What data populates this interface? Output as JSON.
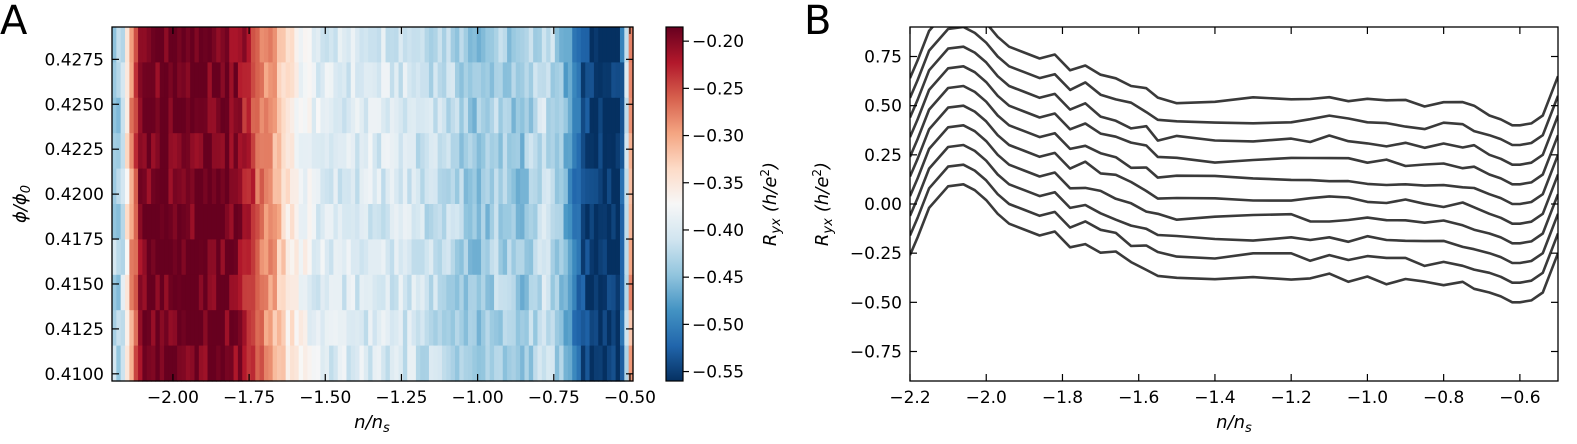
{
  "chart_data": [
    {
      "panel": "A",
      "type": "heatmap",
      "title": "",
      "xlabel_italic": "n/n",
      "xlabel_sub": "s",
      "ylabel_italic": "ϕ/ϕ",
      "ylabel_sub": "0",
      "xlim": [
        -2.2,
        -0.49
      ],
      "ylim": [
        0.4096,
        0.4293
      ],
      "xticks": [
        -2.0,
        -1.75,
        -1.5,
        -1.25,
        -1.0,
        -0.75,
        -0.5
      ],
      "xtick_labels": [
        "−2.00",
        "−1.75",
        "−1.50",
        "−1.25",
        "−1.00",
        "−0.75",
        "−0.50"
      ],
      "yticks": [
        0.41,
        0.4125,
        0.415,
        0.4175,
        0.42,
        0.4225,
        0.425,
        0.4275
      ],
      "ytick_labels": [
        "0.4100",
        "0.4125",
        "0.4150",
        "0.4175",
        "0.4200",
        "0.4225",
        "0.4250",
        "0.4275"
      ],
      "n_rows": 10,
      "profile_x": [
        -2.2,
        -2.18,
        -2.16,
        -2.14,
        -2.1,
        -2.0,
        -1.9,
        -1.82,
        -1.78,
        -1.74,
        -1.7,
        -1.66,
        -1.62,
        -1.58,
        -1.54,
        -1.5,
        -1.4,
        -1.3,
        -1.2,
        -1.1,
        -1.02,
        -0.98,
        -0.94,
        -0.9,
        -0.86,
        -0.82,
        -0.78,
        -0.74,
        -0.7,
        -0.66,
        -0.62,
        -0.58,
        -0.54,
        -0.52,
        -0.5
      ],
      "profile_values": [
        -0.42,
        -0.44,
        -0.4,
        -0.3,
        -0.19,
        -0.19,
        -0.19,
        -0.19,
        -0.21,
        -0.24,
        -0.28,
        -0.31,
        -0.35,
        -0.37,
        -0.39,
        -0.4,
        -0.4,
        -0.4,
        -0.41,
        -0.42,
        -0.44,
        -0.45,
        -0.43,
        -0.44,
        -0.45,
        -0.43,
        -0.41,
        -0.43,
        -0.48,
        -0.53,
        -0.56,
        -0.56,
        -0.56,
        -0.5,
        -0.3
      ],
      "colorbar": {
        "label_italic": "R",
        "label_sub": "yx",
        "label_units": "(h/e",
        "label_sup": "2",
        "label_close": ")",
        "vmin": -0.56,
        "vmax": -0.185,
        "ticks": [
          -0.2,
          -0.25,
          -0.3,
          -0.35,
          -0.4,
          -0.45,
          -0.5,
          -0.55
        ],
        "tick_labels": [
          "−0.20",
          "−0.25",
          "−0.30",
          "−0.35",
          "−0.40",
          "−0.45",
          "−0.50",
          "−0.55"
        ],
        "colormap": [
          "#053061",
          "#2166ac",
          "#4393c3",
          "#92c5de",
          "#d1e5f0",
          "#f7f7f7",
          "#fddbc7",
          "#f4a582",
          "#d6604d",
          "#b2182b",
          "#67001f"
        ]
      }
    },
    {
      "panel": "B",
      "type": "line",
      "title": "",
      "xlabel_italic": "n/n",
      "xlabel_sub": "s",
      "ylabel_italic": "R",
      "ylabel_sub": "yx",
      "ylabel_units": "(h/e",
      "ylabel_sup": "2",
      "ylabel_close": ")",
      "xlim": [
        -2.2,
        -0.5
      ],
      "ylim": [
        -0.9,
        0.9
      ],
      "xticks": [
        -2.2,
        -2.0,
        -1.8,
        -1.6,
        -1.4,
        -1.2,
        -1.0,
        -0.8,
        -0.6
      ],
      "xtick_labels": [
        "−2.2",
        "−2.0",
        "−1.8",
        "−1.6",
        "−1.4",
        "−1.2",
        "−1.0",
        "−0.8",
        "−0.6"
      ],
      "yticks": [
        -0.75,
        -0.5,
        -0.25,
        0.0,
        0.25,
        0.5,
        0.75
      ],
      "ytick_labels": [
        "−0.75",
        "−0.50",
        "−0.25",
        "0.00",
        "0.25",
        "0.50",
        "0.75"
      ],
      "line_color": "#3a3a3a",
      "n_series": 10,
      "offset_per_series": 0.1,
      "base_x": [
        -2.2,
        -2.18,
        -2.15,
        -2.1,
        -2.06,
        -2.03,
        -2.0,
        -1.97,
        -1.94,
        -1.9,
        -1.86,
        -1.82,
        -1.78,
        -1.74,
        -1.7,
        -1.66,
        -1.62,
        -1.58,
        -1.55,
        -1.5,
        -1.4,
        -1.3,
        -1.2,
        -1.15,
        -1.1,
        -1.05,
        -1.0,
        -0.95,
        -0.9,
        -0.85,
        -0.8,
        -0.75,
        -0.72,
        -0.68,
        -0.65,
        -0.62,
        -0.6,
        -0.57,
        -0.54,
        -0.52,
        -0.5
      ],
      "base_y": [
        -0.26,
        -0.17,
        -0.02,
        0.09,
        0.1,
        0.07,
        0.02,
        -0.05,
        -0.1,
        -0.13,
        -0.16,
        -0.14,
        -0.22,
        -0.2,
        -0.25,
        -0.26,
        -0.3,
        -0.32,
        -0.36,
        -0.37,
        -0.37,
        -0.37,
        -0.37,
        -0.38,
        -0.37,
        -0.38,
        -0.38,
        -0.39,
        -0.39,
        -0.4,
        -0.4,
        -0.4,
        -0.42,
        -0.45,
        -0.47,
        -0.5,
        -0.5,
        -0.49,
        -0.45,
        -0.35,
        -0.25
      ]
    }
  ]
}
